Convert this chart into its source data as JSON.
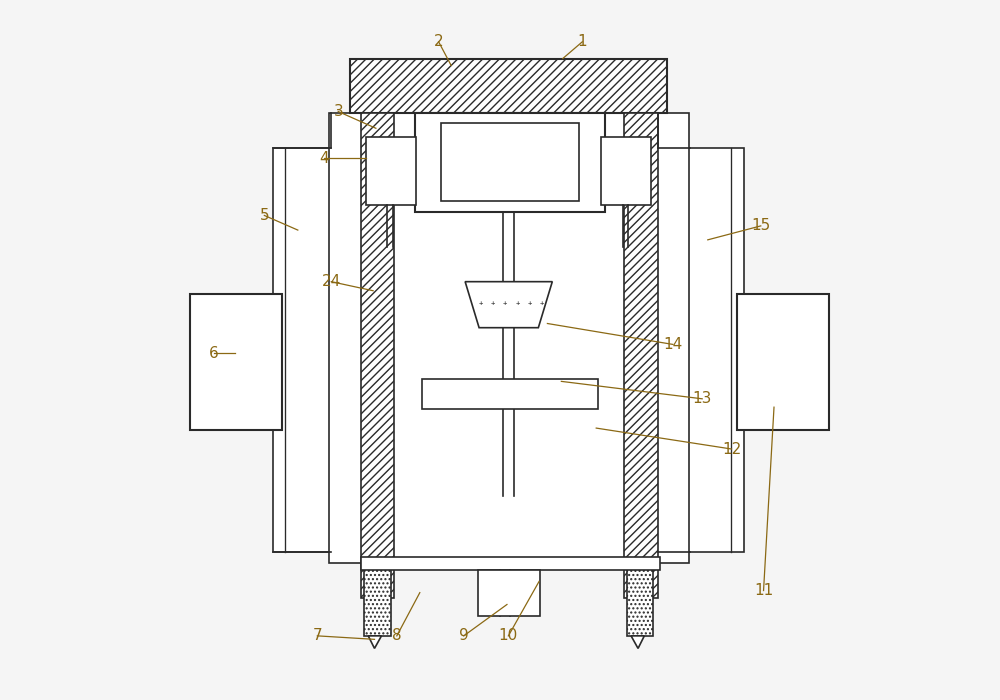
{
  "bg_color": "#f5f5f5",
  "line_color": "#2a2a2a",
  "label_color": "#8B6914",
  "fig_width": 10.0,
  "fig_height": 7.0
}
